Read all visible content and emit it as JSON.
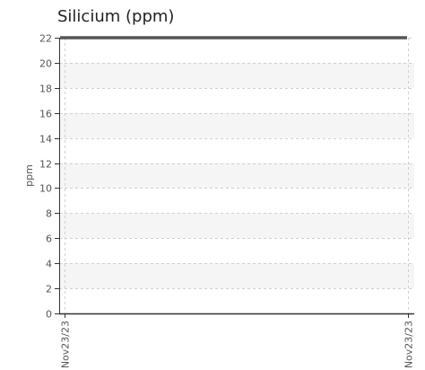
{
  "chart_data": {
    "type": "line",
    "title": "Silicium (ppm)",
    "ylabel": "ppm",
    "xlabel": "",
    "ylim": [
      0,
      22
    ],
    "yticks": [
      0,
      2,
      4,
      6,
      8,
      10,
      12,
      14,
      16,
      18,
      20,
      22
    ],
    "x": [
      "Nov23/23",
      "Nov23/23"
    ],
    "series": [
      {
        "values": [
          22,
          22
        ]
      }
    ],
    "grid": true,
    "colors": {
      "line": "#555555",
      "band": "#f5f5f5",
      "grid": "#d0d0d0",
      "axis": "#333333"
    }
  }
}
